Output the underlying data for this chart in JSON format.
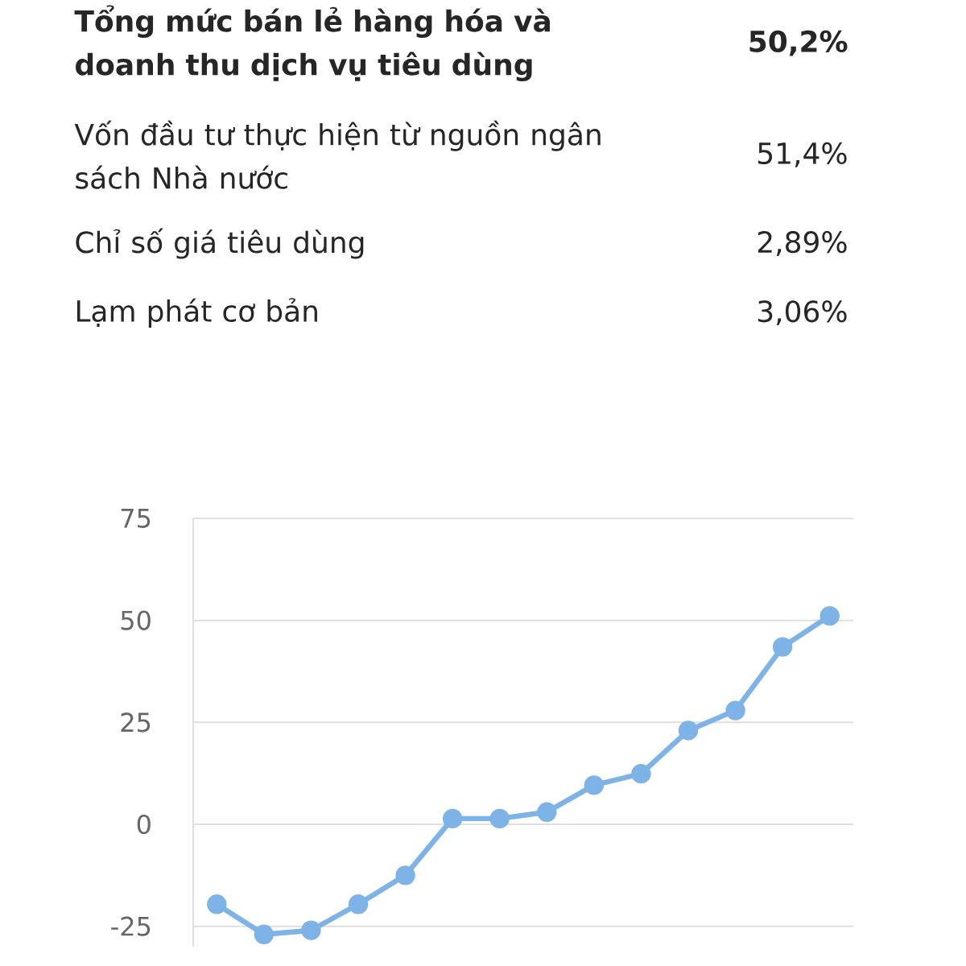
{
  "chart_data": {
    "type": "line",
    "annotations": [
      "**Tổng mức bán lẻ hàng hóa và doanh thu dịch vụ tiêu dùng**",
      "**50,2%**",
      "Vốn đầu tư thực hiện từ nguồn ngân sách Nhà nước",
      "51,4%",
      "Chỉ số giá tiêu dùng",
      "2,89%",
      "Lạm phát cơ bản",
      "3,06%"
    ],
    "categories": [
      null,
      null,
      null,
      null,
      null,
      null,
      null,
      null,
      null,
      null,
      null,
      null,
      null,
      null
    ],
    "series": [
      {
        "color": "#7db3e6",
        "values": [
          -19.6,
          -27,
          -26,
          -19.6,
          -12.5,
          1.4,
          1.4,
          3,
          9.6,
          12.4,
          23,
          27.9,
          43.5,
          51.1
        ]
      }
    ],
    "ylim": [
      -30,
      75
    ],
    "yticks": [
      -25,
      0,
      25,
      50,
      75
    ],
    "grid": "y",
    "marker": "circle",
    "line_style": "solid"
  }
}
